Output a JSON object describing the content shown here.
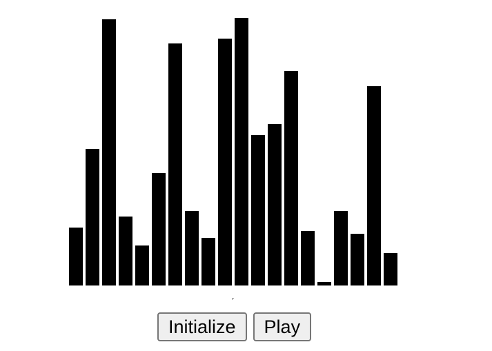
{
  "bars": {
    "values": [
      84,
      198,
      386,
      100,
      58,
      163,
      351,
      108,
      69,
      358,
      388,
      218,
      234,
      311,
      79,
      5,
      108,
      75,
      289,
      47
    ],
    "max_value": 388,
    "bar_color": "#000000"
  },
  "controls": {
    "initialize_label": "Initialize",
    "play_label": "Play"
  }
}
